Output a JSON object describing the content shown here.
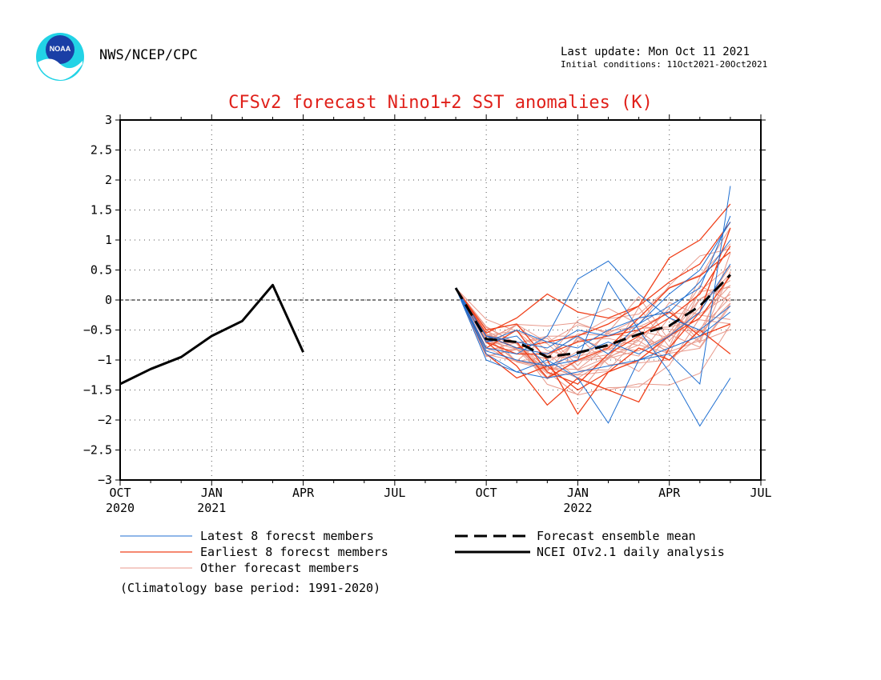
{
  "header": {
    "agency": "NWS/NCEP/CPC",
    "last_update": "Last update: Mon Oct 11 2021",
    "initial_conditions": "Initial conditions: 11Oct2021-20Oct2021",
    "logo_text": "NOAA"
  },
  "colors": {
    "title": "#e0201a",
    "latest_members": "#1f6fd1",
    "earliest_members": "#f0401a",
    "other_members": "#e89a8c",
    "analysis": "#000000",
    "ensemble_mean": "#000000"
  },
  "chart_data": {
    "type": "line",
    "title": "CFSv2 forecast Nino1+2 SST anomalies (K)",
    "ylim": [
      -3,
      3
    ],
    "yticks": [
      "3",
      "2.5",
      "2",
      "1.5",
      "1",
      "0.5",
      "0",
      "−0.5",
      "−1",
      "−1.5",
      "−2",
      "−2.5",
      "−3"
    ],
    "x_months_from_oct2020": [
      0,
      21
    ],
    "xticks": [
      {
        "m": 0,
        "label": "OCT",
        "year": "2020"
      },
      {
        "m": 3,
        "label": "JAN",
        "year": "2021"
      },
      {
        "m": 6,
        "label": "APR",
        "year": ""
      },
      {
        "m": 9,
        "label": "JUL",
        "year": ""
      },
      {
        "m": 12,
        "label": "OCT",
        "year": ""
      },
      {
        "m": 15,
        "label": "JAN",
        "year": "2022"
      },
      {
        "m": 18,
        "label": "APR",
        "year": ""
      },
      {
        "m": 21,
        "label": "JUL",
        "year": ""
      }
    ],
    "grid": true,
    "series": [
      {
        "name": "NCEI OIv2.1 daily analysis",
        "style": "solid-black",
        "x": [
          0,
          1,
          2,
          3,
          4,
          5,
          6
        ],
        "y": [
          -1.4,
          -1.15,
          -0.95,
          -0.6,
          -0.35,
          0.25,
          -0.87
        ]
      },
      {
        "name": "Forecast ensemble mean",
        "style": "dashed-black",
        "x": [
          11.0,
          12.0,
          13.0,
          14.0,
          15.0,
          16.0,
          17.0,
          18.0,
          19.0,
          20.0
        ],
        "y": [
          0.2,
          -0.65,
          -0.7,
          -0.95,
          -0.88,
          -0.75,
          -0.57,
          -0.43,
          -0.1,
          0.42
        ]
      }
    ],
    "ensemble": {
      "start": {
        "x": 11.0,
        "y": 0.2
      },
      "x": [
        12.0,
        13.0,
        14.0,
        15.0,
        16.0,
        17.0,
        18.0,
        19.0,
        20.0
      ],
      "mean": [
        -0.65,
        -0.7,
        -0.95,
        -0.88,
        -0.75,
        -0.57,
        -0.43,
        -0.1,
        0.42
      ],
      "latest_members": [
        [
          -0.8,
          -0.9,
          -0.6,
          0.35,
          0.65,
          0.1,
          -0.3,
          -0.5,
          -0.1
        ],
        [
          -0.9,
          -1.2,
          -1.0,
          -1.3,
          -2.05,
          -1.0,
          -0.9,
          -1.4,
          1.9
        ],
        [
          -0.7,
          -0.6,
          -1.1,
          -1.0,
          0.3,
          -0.5,
          -1.2,
          -2.1,
          -1.3
        ],
        [
          -0.6,
          -0.8,
          -0.9,
          -0.6,
          -0.9,
          -0.4,
          0.1,
          0.5,
          1.3
        ],
        [
          -1.0,
          -1.2,
          -1.3,
          -1.2,
          -1.1,
          -1.0,
          -0.8,
          -0.6,
          -0.2
        ],
        [
          -0.7,
          -0.5,
          -0.7,
          -0.8,
          -0.5,
          -0.3,
          -0.2,
          0.3,
          1.0
        ],
        [
          -0.85,
          -1.0,
          -1.1,
          -0.9,
          -0.7,
          -0.9,
          -0.6,
          -0.2,
          0.6
        ],
        [
          -0.6,
          -0.7,
          -0.8,
          -0.5,
          -0.6,
          -0.4,
          -0.1,
          0.2,
          1.4
        ]
      ],
      "earliest_members": [
        [
          -0.5,
          -0.4,
          -1.0,
          -1.9,
          -1.2,
          -1.0,
          -0.6,
          -0.3,
          0.4
        ],
        [
          -0.7,
          -1.1,
          -1.75,
          -1.3,
          -1.5,
          -1.7,
          -0.8,
          -0.2,
          1.2
        ],
        [
          -0.6,
          -0.8,
          -0.7,
          -0.6,
          -0.4,
          -0.1,
          0.7,
          1.0,
          1.6
        ],
        [
          -0.8,
          -0.5,
          -1.2,
          -1.4,
          -0.9,
          -0.6,
          -0.3,
          0.1,
          0.9
        ],
        [
          -0.9,
          -1.3,
          -1.1,
          -1.5,
          -1.2,
          -0.8,
          -1.0,
          -0.5,
          -0.9
        ],
        [
          -0.55,
          -0.3,
          0.1,
          -0.2,
          -0.3,
          -0.1,
          0.3,
          0.6,
          1.3
        ],
        [
          -0.7,
          -0.9,
          -0.9,
          -0.7,
          -0.6,
          -0.5,
          -0.2,
          -0.6,
          -0.4
        ],
        [
          -0.6,
          -0.7,
          -1.3,
          -1.0,
          -0.8,
          -0.3,
          0.2,
          0.4,
          0.8
        ]
      ],
      "other_members_count": 24
    },
    "legend": [
      {
        "label": "Latest 8 forecst members",
        "kind": "latest",
        "column": 0,
        "row": 0
      },
      {
        "label": "Earliest 8 forecst members",
        "kind": "earliest",
        "column": 0,
        "row": 1
      },
      {
        "label": "Other forecast members",
        "kind": "other",
        "column": 0,
        "row": 2
      },
      {
        "label": "Forecast ensemble mean",
        "kind": "mean",
        "column": 1,
        "row": 0
      },
      {
        "label": "NCEI OIv2.1 daily analysis",
        "kind": "analysis",
        "column": 1,
        "row": 1
      }
    ],
    "note": "(Climatology base period: 1991-2020)"
  }
}
